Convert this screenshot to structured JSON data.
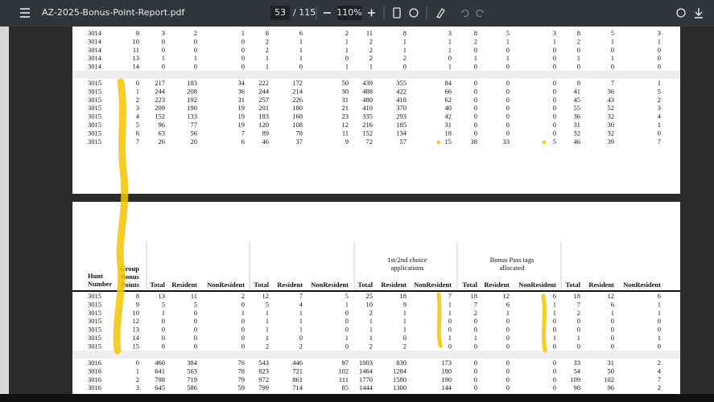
{
  "toolbar": {
    "filename": "AZ-2025-Bonus-Point-Report.pdf",
    "page": "53",
    "page_count": "/ 115",
    "zoom": "110%"
  },
  "page1": {
    "blocks": [
      [
        [
          3014,
          9,
          3,
          2,
          1,
          8,
          6,
          2,
          11,
          8,
          3,
          8,
          5,
          3,
          8,
          5,
          3
        ],
        [
          3014,
          10,
          0,
          0,
          0,
          2,
          1,
          1,
          2,
          1,
          1,
          2,
          1,
          1,
          2,
          1,
          1
        ],
        [
          3014,
          11,
          0,
          0,
          0,
          2,
          1,
          1,
          2,
          1,
          1,
          0,
          0,
          0,
          0,
          0,
          0
        ],
        [
          3014,
          13,
          1,
          1,
          0,
          1,
          1,
          0,
          2,
          2,
          0,
          1,
          1,
          0,
          1,
          1,
          0
        ],
        [
          3014,
          14,
          0,
          0,
          0,
          1,
          0,
          1,
          1,
          0,
          1,
          0,
          0,
          0,
          0,
          0,
          0
        ]
      ],
      [
        [
          3015,
          0,
          217,
          183,
          34,
          222,
          172,
          50,
          439,
          355,
          84,
          0,
          0,
          0,
          8,
          7,
          1
        ],
        [
          3015,
          1,
          244,
          208,
          36,
          244,
          214,
          30,
          488,
          422,
          66,
          0,
          0,
          0,
          41,
          36,
          5
        ],
        [
          3015,
          2,
          223,
          192,
          31,
          257,
          226,
          31,
          480,
          418,
          62,
          0,
          0,
          0,
          45,
          43,
          2
        ],
        [
          3015,
          3,
          209,
          190,
          19,
          201,
          180,
          21,
          410,
          370,
          40,
          0,
          0,
          0,
          55,
          52,
          3
        ],
        [
          3015,
          4,
          152,
          133,
          19,
          183,
          160,
          23,
          335,
          293,
          42,
          0,
          0,
          0,
          36,
          32,
          4
        ],
        [
          3015,
          5,
          96,
          77,
          19,
          120,
          108,
          12,
          216,
          185,
          31,
          0,
          0,
          0,
          31,
          30,
          1
        ],
        [
          3015,
          6,
          63,
          56,
          7,
          89,
          78,
          11,
          152,
          134,
          18,
          0,
          0,
          0,
          32,
          32,
          0
        ],
        [
          3015,
          7,
          26,
          20,
          6,
          46,
          37,
          9,
          72,
          57,
          15,
          38,
          33,
          5,
          46,
          39,
          7
        ]
      ]
    ]
  },
  "page2": {
    "hunt_label": [
      "Hunt",
      "Number"
    ],
    "points_label": [
      "Group",
      "Bonus",
      "Points"
    ],
    "group_titles": [
      {
        "col": 10,
        "lines": [
          "1st/2nd choice",
          "applications"
        ]
      },
      {
        "col": 13,
        "lines": [
          "Bonus Pass tags",
          "allocated"
        ]
      }
    ],
    "columns": [
      "Total",
      "Resident",
      "NonResident",
      "Total",
      "Resident",
      "NonResident",
      "Total",
      "Resident",
      "NonResident",
      "Total",
      "Resident",
      "NonResident",
      "Total",
      "Resident",
      "NonResident"
    ],
    "blocks": [
      [
        [
          3015,
          8,
          13,
          11,
          2,
          12,
          7,
          5,
          25,
          18,
          7,
          18,
          12,
          6,
          18,
          12,
          6
        ],
        [
          3015,
          9,
          5,
          5,
          0,
          5,
          4,
          1,
          10,
          9,
          1,
          7,
          6,
          1,
          7,
          6,
          1
        ],
        [
          3015,
          10,
          1,
          0,
          1,
          1,
          1,
          0,
          2,
          1,
          1,
          2,
          1,
          1,
          2,
          1,
          1
        ],
        [
          3015,
          12,
          0,
          0,
          0,
          1,
          1,
          0,
          1,
          1,
          0,
          0,
          0,
          0,
          0,
          0,
          0
        ],
        [
          3015,
          13,
          0,
          0,
          0,
          1,
          1,
          0,
          1,
          1,
          0,
          0,
          0,
          0,
          0,
          0,
          0
        ],
        [
          3015,
          14,
          0,
          0,
          0,
          1,
          0,
          1,
          1,
          0,
          1,
          1,
          0,
          1,
          1,
          0,
          1
        ],
        [
          3015,
          15,
          0,
          0,
          0,
          2,
          2,
          0,
          2,
          2,
          0,
          0,
          0,
          0,
          0,
          0,
          0
        ]
      ],
      [
        [
          3016,
          0,
          460,
          384,
          76,
          543,
          446,
          97,
          1003,
          830,
          173,
          0,
          0,
          0,
          33,
          31,
          2
        ],
        [
          3016,
          1,
          641,
          563,
          78,
          823,
          721,
          102,
          1464,
          1284,
          180,
          0,
          0,
          0,
          54,
          50,
          4
        ],
        [
          3016,
          2,
          798,
          719,
          79,
          972,
          861,
          111,
          1770,
          1580,
          190,
          0,
          0,
          0,
          109,
          102,
          7
        ],
        [
          3016,
          3,
          645,
          586,
          59,
          799,
          714,
          85,
          1444,
          1300,
          144,
          0,
          0,
          0,
          98,
          96,
          2
        ]
      ]
    ]
  }
}
